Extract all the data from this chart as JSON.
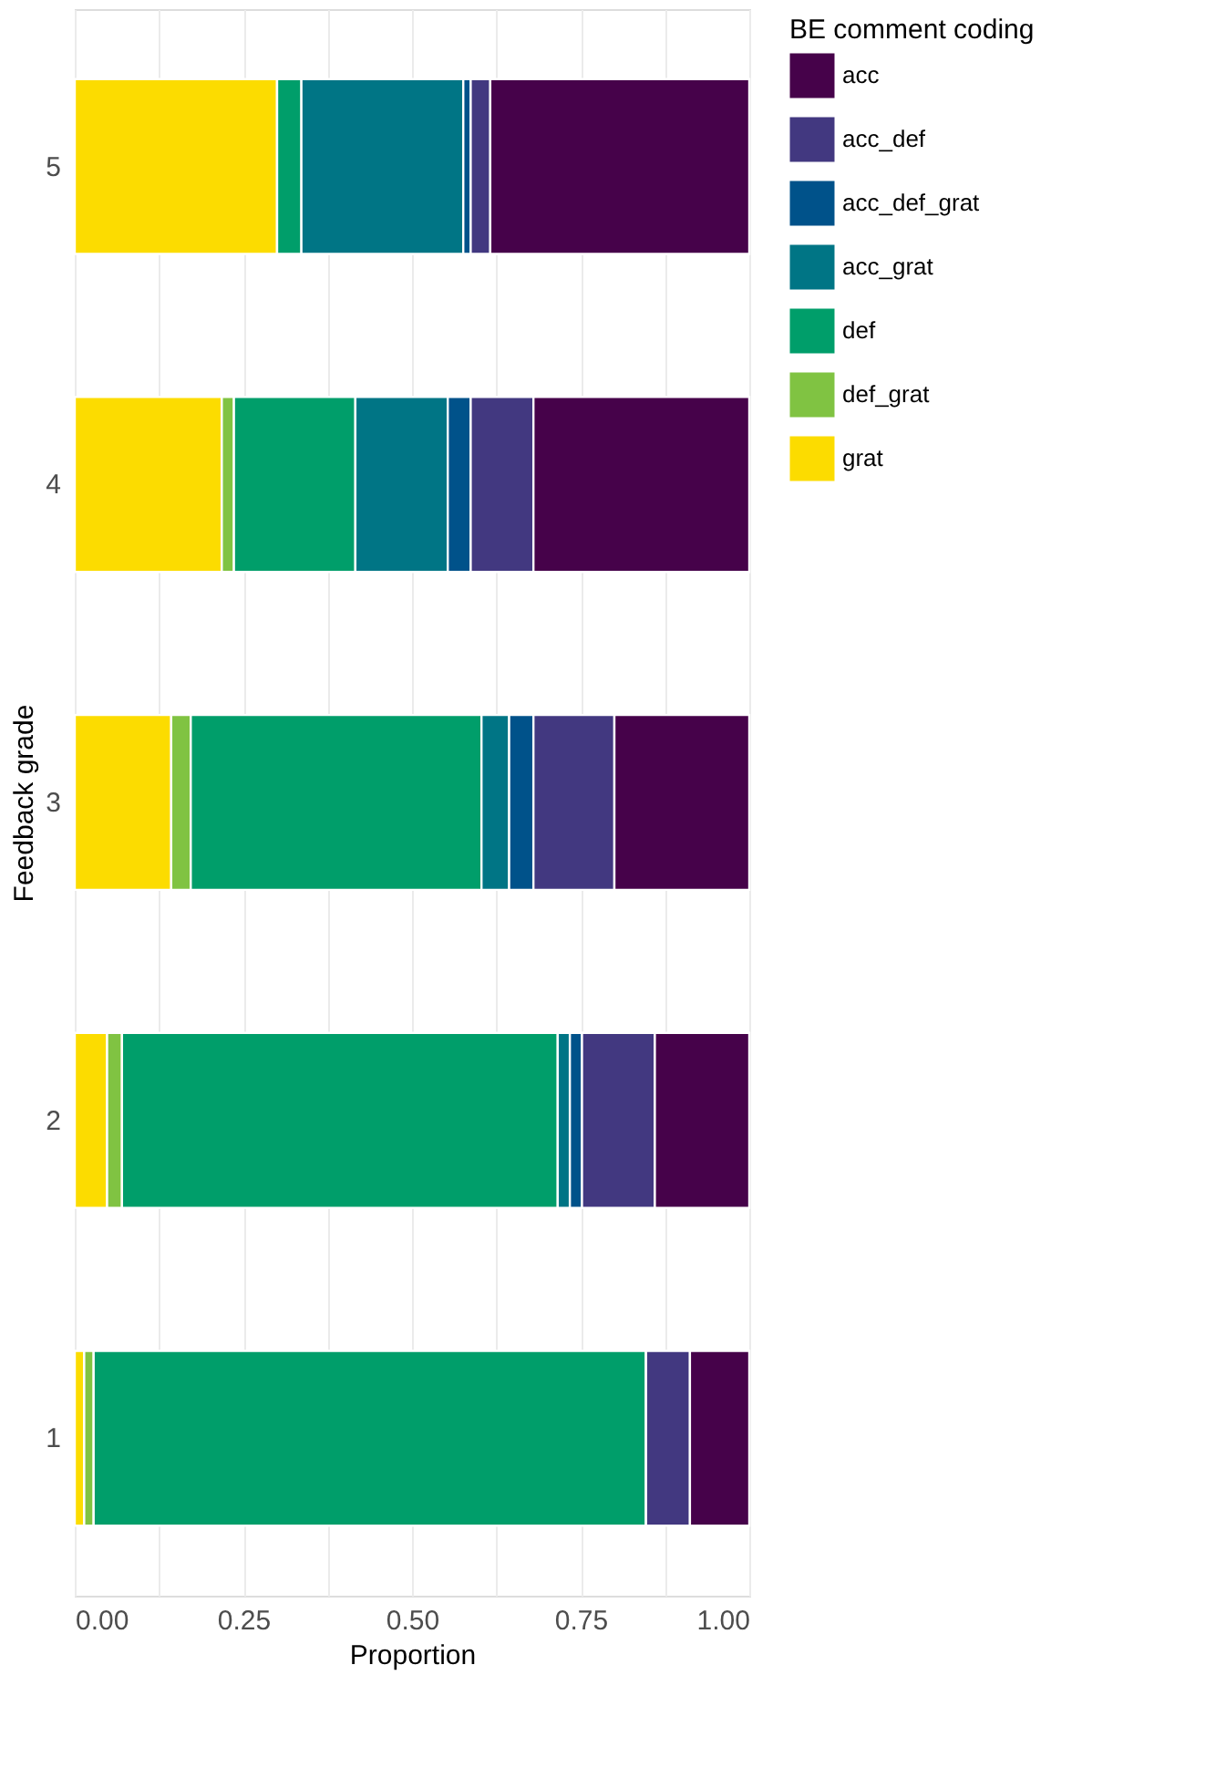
{
  "chart_data": {
    "type": "bar",
    "orientation": "horizontal",
    "stacked": true,
    "xlabel": "Proportion",
    "ylabel": "Feedback grade",
    "legend_title": "BE comment coding",
    "categories": [
      "5",
      "4",
      "3",
      "2",
      "1"
    ],
    "series": [
      {
        "name": "grat",
        "color": "#fcdc00",
        "values": [
          0.3,
          0.218,
          0.143,
          0.048,
          0.014
        ]
      },
      {
        "name": "def_grat",
        "color": "#80c342",
        "values": [
          0,
          0.018,
          0.029,
          0.022,
          0.014
        ]
      },
      {
        "name": "def",
        "color": "#009e6a",
        "values": [
          0.036,
          0.18,
          0.431,
          0.646,
          0.819
        ]
      },
      {
        "name": "acc_grat",
        "color": "#007585",
        "values": [
          0.24,
          0.137,
          0.041,
          0.018,
          0
        ]
      },
      {
        "name": "acc_def_grat",
        "color": "#00528a",
        "values": [
          0.011,
          0.034,
          0.036,
          0.018,
          0
        ]
      },
      {
        "name": "acc_def",
        "color": "#423880",
        "values": [
          0.029,
          0.093,
          0.12,
          0.108,
          0.065
        ]
      },
      {
        "name": "acc",
        "color": "#46024a",
        "values": [
          0.384,
          0.32,
          0.2,
          0.14,
          0.088
        ]
      }
    ],
    "xlim": [
      0,
      1
    ],
    "xticks": [
      {
        "value": 0,
        "label": "0.00"
      },
      {
        "value": 0.125,
        "label": null
      },
      {
        "value": 0.25,
        "label": "0.25"
      },
      {
        "value": 0.375,
        "label": null
      },
      {
        "value": 0.5,
        "label": "0.50"
      },
      {
        "value": 0.625,
        "label": null
      },
      {
        "value": 0.75,
        "label": "0.75"
      },
      {
        "value": 0.875,
        "label": null
      },
      {
        "value": 1,
        "label": "1.00"
      }
    ],
    "grid": true,
    "legend": "right"
  }
}
